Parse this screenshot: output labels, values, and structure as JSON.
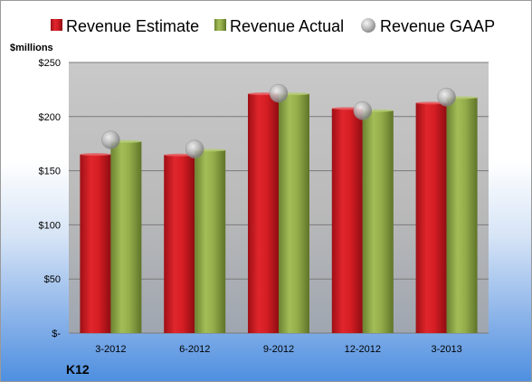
{
  "chart_data": {
    "type": "bar",
    "title": "",
    "ylabel": "$millions",
    "company": "K12",
    "categories": [
      "3-2012",
      "6-2012",
      "9-2012",
      "12-2012",
      "3-2013"
    ],
    "series": [
      {
        "name": "Revenue Estimate",
        "kind": "bar",
        "color": "#c8191f",
        "values": [
          165,
          164.5,
          221,
          207.5,
          212.5
        ]
      },
      {
        "name": "Revenue Actual",
        "kind": "bar",
        "color": "#8aa33f",
        "values": [
          177,
          169,
          221,
          205.5,
          217.5
        ]
      },
      {
        "name": "Revenue GAAP",
        "kind": "marker",
        "color": "#b8b8b8",
        "values": [
          178.5,
          170,
          221.5,
          205.5,
          218
        ]
      }
    ],
    "ylim": [
      0,
      250
    ],
    "yticks": [
      0,
      50,
      100,
      150,
      200,
      250
    ],
    "ytick_labels": [
      "$-",
      "$50",
      "$100",
      "$150",
      "$200",
      "$250"
    ],
    "grid": true,
    "legend_position": "top"
  }
}
